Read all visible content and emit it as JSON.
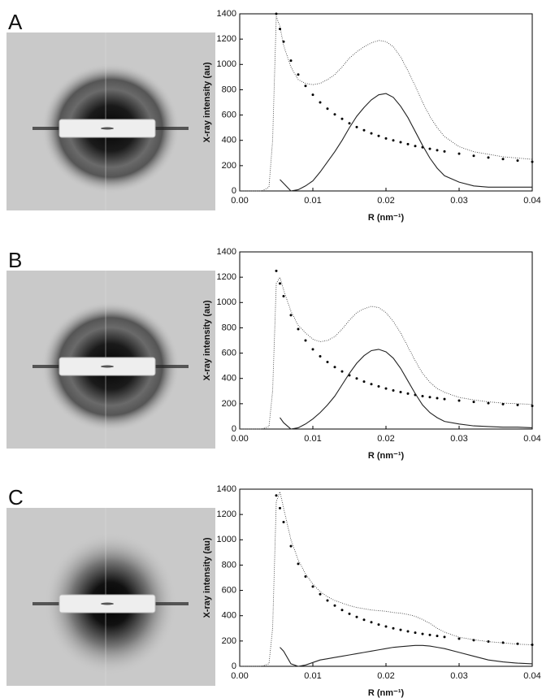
{
  "chart_data": [
    {
      "type": "line",
      "panel_label": "A",
      "ylabel": "X-ray intensity (au)",
      "xlabel": "R (nm⁻¹)",
      "x": [
        0,
        0.003,
        0.004,
        0.0045,
        0.005,
        0.0055,
        0.006,
        0.007,
        0.008,
        0.009,
        0.01,
        0.011,
        0.012,
        0.013,
        0.014,
        0.015,
        0.016,
        0.017,
        0.018,
        0.019,
        0.02,
        0.021,
        0.022,
        0.023,
        0.024,
        0.025,
        0.026,
        0.027,
        0.028,
        0.03,
        0.032,
        0.034,
        0.036,
        0.038,
        0.04
      ],
      "series": [
        {
          "style": "dotted-line",
          "color": "#333333",
          "values": [
            0,
            0,
            30,
            400,
            1380,
            1300,
            1150,
            980,
            880,
            850,
            840,
            850,
            880,
            920,
            980,
            1050,
            1100,
            1140,
            1170,
            1190,
            1180,
            1140,
            1060,
            950,
            830,
            700,
            590,
            500,
            430,
            350,
            310,
            290,
            270,
            260,
            250
          ]
        },
        {
          "style": "dots",
          "color": "#000000",
          "values": [
            null,
            null,
            null,
            null,
            1400,
            1280,
            1180,
            1030,
            920,
            830,
            760,
            700,
            650,
            605,
            570,
            535,
            505,
            480,
            455,
            435,
            415,
            400,
            385,
            370,
            355,
            345,
            333,
            322,
            312,
            295,
            278,
            264,
            252,
            240,
            230
          ]
        },
        {
          "style": "line",
          "color": "#222222",
          "values": [
            null,
            null,
            null,
            null,
            null,
            90,
            60,
            0,
            10,
            40,
            80,
            150,
            230,
            310,
            400,
            500,
            590,
            660,
            720,
            760,
            770,
            740,
            670,
            580,
            470,
            360,
            260,
            180,
            120,
            70,
            40,
            30,
            30,
            30,
            30
          ]
        }
      ],
      "xlim": [
        0,
        0.04
      ],
      "ylim": [
        0,
        1400
      ],
      "xticks": [
        {
          "value": 0,
          "label": "0.00"
        },
        0.01,
        0.02,
        0.03,
        0.04
      ],
      "yticks": [
        0,
        200,
        400,
        600,
        800,
        1000,
        1200,
        1400
      ]
    },
    {
      "type": "line",
      "panel_label": "B",
      "ylabel": "X-ray intensity (au)",
      "xlabel": "R (nm⁻¹)",
      "x": [
        0,
        0.003,
        0.004,
        0.0045,
        0.005,
        0.0055,
        0.006,
        0.007,
        0.008,
        0.009,
        0.01,
        0.011,
        0.012,
        0.013,
        0.014,
        0.015,
        0.016,
        0.017,
        0.018,
        0.019,
        0.02,
        0.021,
        0.022,
        0.023,
        0.024,
        0.025,
        0.026,
        0.027,
        0.028,
        0.03,
        0.032,
        0.034,
        0.036,
        0.038,
        0.04
      ],
      "series": [
        {
          "style": "dotted-line",
          "color": "#333333",
          "values": [
            0,
            0,
            20,
            300,
            1150,
            1200,
            1100,
            930,
            820,
            760,
            710,
            690,
            700,
            730,
            790,
            860,
            920,
            950,
            970,
            960,
            920,
            850,
            760,
            650,
            540,
            440,
            370,
            320,
            290,
            250,
            230,
            215,
            205,
            200,
            195
          ]
        },
        {
          "style": "dots",
          "color": "#000000",
          "values": [
            null,
            null,
            null,
            null,
            1250,
            1150,
            1050,
            900,
            790,
            700,
            630,
            575,
            530,
            490,
            455,
            425,
            400,
            375,
            355,
            337,
            320,
            305,
            292,
            280,
            270,
            260,
            252,
            244,
            237,
            225,
            214,
            205,
            197,
            190,
            183
          ]
        },
        {
          "style": "line",
          "color": "#222222",
          "values": [
            null,
            null,
            null,
            null,
            null,
            90,
            50,
            0,
            10,
            40,
            80,
            130,
            190,
            260,
            350,
            440,
            520,
            580,
            620,
            630,
            610,
            560,
            480,
            380,
            280,
            190,
            130,
            90,
            60,
            40,
            25,
            20,
            15,
            15,
            10
          ]
        }
      ],
      "xlim": [
        0,
        0.04
      ],
      "ylim": [
        0,
        1400
      ],
      "xticks": [
        {
          "value": 0,
          "label": "0.00"
        },
        0.01,
        0.02,
        0.03,
        0.04
      ],
      "yticks": [
        0,
        200,
        400,
        600,
        800,
        1000,
        1200,
        1400
      ]
    },
    {
      "type": "line",
      "panel_label": "C",
      "ylabel": "X-ray intensity (au)",
      "xlabel": "R (nm⁻¹)",
      "x": [
        0,
        0.003,
        0.004,
        0.0045,
        0.005,
        0.0055,
        0.006,
        0.007,
        0.008,
        0.009,
        0.01,
        0.011,
        0.012,
        0.013,
        0.014,
        0.015,
        0.016,
        0.017,
        0.018,
        0.019,
        0.02,
        0.021,
        0.022,
        0.023,
        0.024,
        0.025,
        0.026,
        0.027,
        0.028,
        0.03,
        0.032,
        0.034,
        0.036,
        0.038,
        0.04
      ],
      "series": [
        {
          "style": "dotted-line",
          "color": "#333333",
          "values": [
            0,
            0,
            20,
            300,
            1300,
            1380,
            1250,
            1000,
            840,
            730,
            650,
            590,
            550,
            520,
            500,
            480,
            465,
            455,
            445,
            440,
            435,
            425,
            420,
            410,
            395,
            370,
            340,
            300,
            270,
            230,
            210,
            195,
            185,
            175,
            170
          ]
        },
        {
          "style": "dots",
          "color": "#000000",
          "values": [
            null,
            null,
            null,
            null,
            1350,
            1250,
            1140,
            950,
            810,
            710,
            630,
            570,
            520,
            480,
            445,
            415,
            390,
            368,
            348,
            330,
            315,
            300,
            288,
            276,
            266,
            256,
            248,
            240,
            232,
            218,
            206,
            196,
            187,
            178,
            170
          ]
        },
        {
          "style": "line",
          "color": "#222222",
          "values": [
            null,
            null,
            null,
            null,
            null,
            150,
            120,
            20,
            0,
            10,
            30,
            50,
            60,
            70,
            80,
            90,
            100,
            110,
            120,
            130,
            140,
            150,
            155,
            160,
            165,
            165,
            160,
            150,
            140,
            110,
            80,
            50,
            35,
            25,
            20
          ]
        }
      ],
      "xlim": [
        0,
        0.04
      ],
      "ylim": [
        0,
        1400
      ],
      "xticks": [
        {
          "value": 0,
          "label": "0.00"
        },
        0.01,
        0.02,
        0.03,
        0.04
      ],
      "yticks": [
        0,
        200,
        400,
        600,
        800,
        1000,
        1200,
        1400
      ]
    }
  ]
}
